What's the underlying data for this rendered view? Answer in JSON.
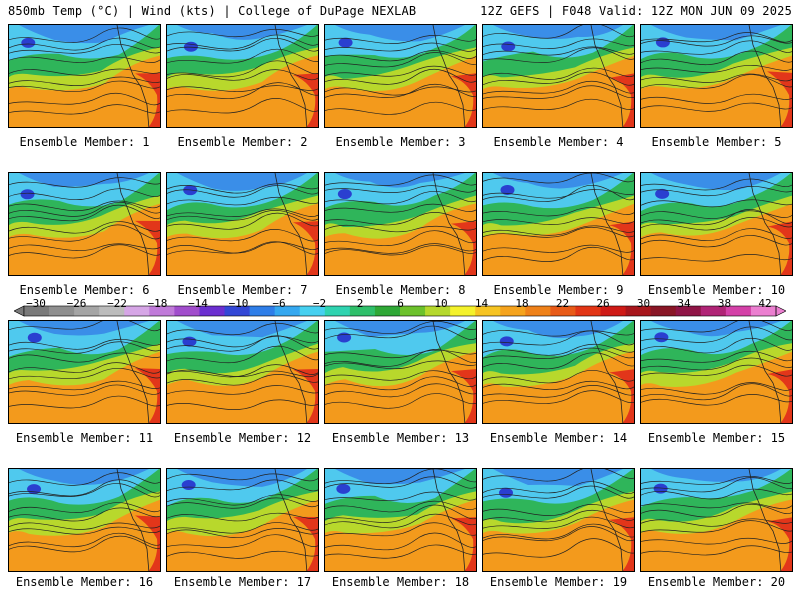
{
  "header": {
    "left": "850mb Temp (°C) | Wind (kts) | College of DuPage NEXLAB",
    "right": "12Z GEFS | F048 Valid: 12Z MON JUN 09 2025"
  },
  "caption_prefix": "Ensemble Member:",
  "members": [
    1,
    2,
    3,
    4,
    5,
    6,
    7,
    8,
    9,
    10,
    11,
    12,
    13,
    14,
    15,
    16,
    17,
    18,
    19,
    20
  ],
  "colorbar": {
    "labels": [
      "−30",
      "−26",
      "−22",
      "−18",
      "−14",
      "−10",
      "−6",
      "−2",
      "2",
      "6",
      "10",
      "14",
      "18",
      "22",
      "26",
      "30",
      "34",
      "38",
      "42"
    ],
    "colors": [
      "#7a7a7a",
      "#8f8f8f",
      "#a5a5a5",
      "#bcbcbc",
      "#d6a6e6",
      "#c07ad9",
      "#a14dcc",
      "#6b2fd0",
      "#3347d6",
      "#2f7ee8",
      "#35a8f0",
      "#46d0f0",
      "#2fd3b0",
      "#2fbf6a",
      "#2fa836",
      "#6cc12b",
      "#b5d82c",
      "#f4f22b",
      "#f6c422",
      "#f5a31d",
      "#ef8119",
      "#e85a17",
      "#e23515",
      "#cf1a16",
      "#a8161c",
      "#891626",
      "#8f1446",
      "#b02476",
      "#d441a8",
      "#eb7fd0"
    ]
  },
  "map_colors": {
    "warm": "#f39a1c",
    "hot": "#e2361a",
    "mild": "#b8d82c",
    "cool": "#2fb55a",
    "cold": "#4fc9ee",
    "colder": "#3a8ee8",
    "coldest": "#2a3fd0",
    "contour": "#222222"
  }
}
